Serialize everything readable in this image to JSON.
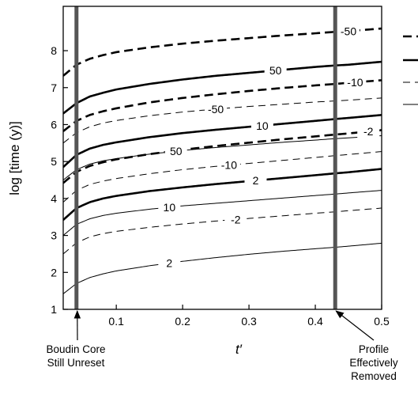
{
  "chart_data": {
    "type": "line",
    "title": "",
    "xlabel": "t′",
    "ylabel": "log [time (y)]",
    "xlim": [
      0.02,
      0.5
    ],
    "ylim": [
      1,
      9.2
    ],
    "xticks": [
      "0.1",
      "0.2",
      "0.3",
      "0.4",
      "0.5"
    ],
    "yticks": [
      "1",
      "2",
      "3",
      "4",
      "5",
      "6",
      "7",
      "8"
    ],
    "grid": false,
    "legend_position": "right (clipped)",
    "x": [
      0.02,
      0.04,
      0.06,
      0.08,
      0.1,
      0.15,
      0.2,
      0.25,
      0.3,
      0.35,
      0.4,
      0.43,
      0.45,
      0.5
    ],
    "series": [
      {
        "label": "-50",
        "style": "dashed-heavy",
        "values": [
          7.32,
          7.62,
          7.78,
          7.88,
          7.96,
          8.09,
          8.19,
          8.27,
          8.34,
          8.41,
          8.47,
          8.51,
          8.53,
          8.6
        ]
      },
      {
        "label": "50",
        "style": "solid-heavy",
        "values": [
          6.3,
          6.58,
          6.76,
          6.86,
          6.95,
          7.1,
          7.22,
          7.32,
          7.4,
          7.48,
          7.56,
          7.6,
          7.62,
          7.7
        ]
      },
      {
        "label": "-10",
        "style": "dashed-heavy",
        "values": [
          5.82,
          6.1,
          6.26,
          6.36,
          6.44,
          6.6,
          6.72,
          6.82,
          6.91,
          6.99,
          7.06,
          7.1,
          7.13,
          7.2
        ]
      },
      {
        "label": "-50",
        "style": "dashed-thin",
        "values": [
          5.5,
          5.78,
          5.94,
          6.04,
          6.11,
          6.24,
          6.34,
          6.42,
          6.49,
          6.55,
          6.61,
          6.64,
          6.66,
          6.72
        ]
      },
      {
        "label": "10",
        "style": "solid-heavy",
        "values": [
          4.85,
          5.18,
          5.35,
          5.45,
          5.52,
          5.66,
          5.77,
          5.86,
          5.94,
          6.02,
          6.1,
          6.15,
          6.18,
          6.26
        ]
      },
      {
        "label": "-2",
        "style": "dashed-heavy",
        "values": [
          4.42,
          4.72,
          4.88,
          4.98,
          5.06,
          5.2,
          5.32,
          5.42,
          5.51,
          5.6,
          5.68,
          5.73,
          5.76,
          5.85
        ]
      },
      {
        "label": "50",
        "style": "solid-thin",
        "values": [
          4.5,
          4.78,
          4.93,
          5.02,
          5.08,
          5.2,
          5.3,
          5.38,
          5.45,
          5.52,
          5.58,
          5.62,
          5.64,
          5.7
        ]
      },
      {
        "label": "-10",
        "style": "dashed-thin",
        "values": [
          3.9,
          4.22,
          4.38,
          4.47,
          4.54,
          4.67,
          4.78,
          4.87,
          4.95,
          5.03,
          5.11,
          5.16,
          5.19,
          5.27
        ]
      },
      {
        "label": "2",
        "style": "solid-heavy",
        "values": [
          3.42,
          3.74,
          3.9,
          4.0,
          4.07,
          4.2,
          4.3,
          4.39,
          4.47,
          4.55,
          4.63,
          4.68,
          4.71,
          4.8
        ]
      },
      {
        "label": "10",
        "style": "solid-thin",
        "values": [
          3.0,
          3.3,
          3.45,
          3.54,
          3.6,
          3.71,
          3.8,
          3.87,
          3.94,
          4.01,
          4.08,
          4.12,
          4.15,
          4.22
        ]
      },
      {
        "label": "-2",
        "style": "dashed-thin",
        "values": [
          2.5,
          2.8,
          2.96,
          3.05,
          3.11,
          3.22,
          3.31,
          3.39,
          3.46,
          3.53,
          3.6,
          3.64,
          3.67,
          3.74
        ]
      },
      {
        "label": "2",
        "style": "solid-thin",
        "values": [
          1.42,
          1.7,
          1.86,
          1.96,
          2.04,
          2.18,
          2.3,
          2.4,
          2.49,
          2.57,
          2.64,
          2.68,
          2.71,
          2.79
        ]
      }
    ],
    "reference_lines": [
      {
        "x": 0.04,
        "label": "Boudin Core\nStill Unreset"
      },
      {
        "x": 0.43,
        "label": "Profile\nEffectively\nRemoved"
      }
    ]
  }
}
